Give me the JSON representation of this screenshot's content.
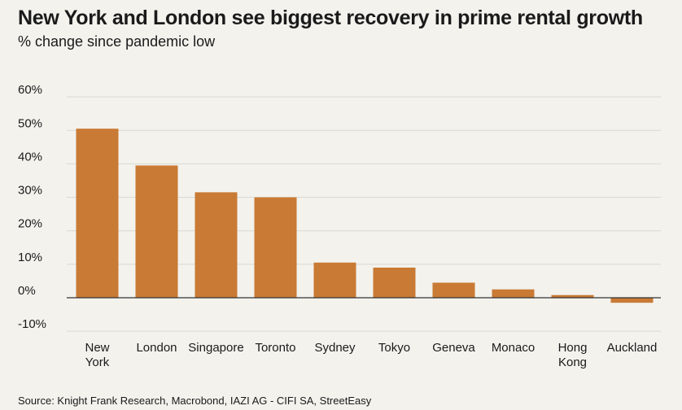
{
  "header": {
    "title": "New York and London see biggest recovery in prime rental growth",
    "subtitle": "% change since pandemic low"
  },
  "footer": {
    "source": "Source: Knight Frank Research, Macrobond, IAZI AG - CIFI SA, StreetEasy"
  },
  "colors": {
    "bar": "#c97a34",
    "grid": "#d9d8d2",
    "zero_line": "#333333",
    "background": "#f3f2ed"
  },
  "chart_data": {
    "type": "bar",
    "title": "New York and London see biggest recovery in prime rental growth",
    "subtitle": "% change since pandemic low",
    "categories": [
      [
        "New",
        "York"
      ],
      [
        "London"
      ],
      [
        "Singapore"
      ],
      [
        "Toronto"
      ],
      [
        "Sydney"
      ],
      [
        "Tokyo"
      ],
      [
        "Geneva"
      ],
      [
        "Monaco"
      ],
      [
        "Hong",
        "Kong"
      ],
      [
        "Auckland"
      ]
    ],
    "values": [
      50.5,
      39.5,
      31.5,
      30.0,
      10.5,
      9.0,
      4.5,
      2.5,
      0.8,
      -1.5
    ],
    "ylim": [
      -10,
      60
    ],
    "yticks": [
      60,
      50,
      40,
      30,
      20,
      10,
      0,
      -10
    ],
    "ytick_labels": [
      "60%",
      "50%",
      "40%",
      "30%",
      "20%",
      "10%",
      "0%",
      "-10%"
    ],
    "xlabel": "",
    "ylabel": "",
    "grid": true,
    "legend": "none"
  }
}
